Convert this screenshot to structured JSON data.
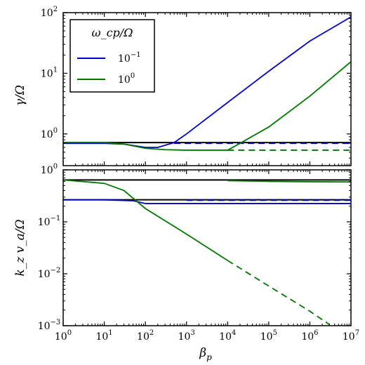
{
  "chart_data": [
    {
      "type": "line",
      "panel": "top",
      "xlabel": "",
      "ylabel_main": "γ/Ω",
      "xscale": "log",
      "yscale": "log",
      "xlim": [
        1,
        10000000
      ],
      "ylim": [
        0.3,
        100
      ],
      "xticks": [
        {
          "base": "10",
          "exp": "0",
          "value": 1
        },
        {
          "base": "10",
          "exp": "1",
          "value": 10
        },
        {
          "base": "10",
          "exp": "2",
          "value": 100
        },
        {
          "base": "10",
          "exp": "3",
          "value": 1000
        },
        {
          "base": "10",
          "exp": "4",
          "value": 10000
        },
        {
          "base": "10",
          "exp": "5",
          "value": 100000
        },
        {
          "base": "10",
          "exp": "6",
          "value": 1000000
        },
        {
          "base": "10",
          "exp": "7",
          "value": 10000000
        }
      ],
      "yticks": [
        {
          "base": "10",
          "exp": "0",
          "value": 1
        },
        {
          "base": "10",
          "exp": "1",
          "value": 10
        },
        {
          "base": "10",
          "exp": "2",
          "value": 100
        }
      ],
      "legend": {
        "placement": "top-left",
        "title": "ω_cp/Ω",
        "entries": [
          {
            "base": "10",
            "exp": "−1",
            "color": "#0000cc"
          },
          {
            "base": "10",
            "exp": "0",
            "color": "#007700"
          }
        ]
      },
      "series": [
        {
          "color": "#000000",
          "style": "solid",
          "x": [
            1,
            10000000
          ],
          "y": [
            0.72,
            0.72
          ]
        },
        {
          "color": "#0000cc",
          "style": "solid",
          "x": [
            1,
            10,
            30,
            100,
            200,
            500,
            1000,
            10000,
            100000,
            1000000,
            10000000
          ],
          "y": [
            0.7,
            0.7,
            0.68,
            0.6,
            0.6,
            0.72,
            1.0,
            3.3,
            10.8,
            34,
            85
          ]
        },
        {
          "color": "#0000cc",
          "style": "dashed",
          "x": [
            500,
            10000000
          ],
          "y": [
            0.7,
            0.7
          ]
        },
        {
          "color": "#007700",
          "style": "solid",
          "x": [
            1,
            10,
            30,
            100,
            300,
            1000,
            10000,
            20000,
            100000,
            1000000,
            10000000
          ],
          "y": [
            0.72,
            0.72,
            0.68,
            0.58,
            0.55,
            0.54,
            0.54,
            0.7,
            1.3,
            4.2,
            15.5
          ]
        },
        {
          "color": "#007700",
          "style": "dashed",
          "x": [
            10000,
            10000000
          ],
          "y": [
            0.54,
            0.54
          ]
        }
      ]
    },
    {
      "type": "line",
      "panel": "bottom",
      "xlabel_main": "β",
      "xlabel_sub": "p",
      "ylabel_main": "k_z v_a/Ω",
      "xscale": "log",
      "yscale": "log",
      "xlim": [
        1,
        10000000
      ],
      "ylim": [
        0.001,
        1
      ],
      "xticks": [
        {
          "base": "10",
          "exp": "0",
          "value": 1
        },
        {
          "base": "10",
          "exp": "1",
          "value": 10
        },
        {
          "base": "10",
          "exp": "2",
          "value": 100
        },
        {
          "base": "10",
          "exp": "3",
          "value": 1000
        },
        {
          "base": "10",
          "exp": "4",
          "value": 10000
        },
        {
          "base": "10",
          "exp": "5",
          "value": 100000
        },
        {
          "base": "10",
          "exp": "6",
          "value": 1000000
        },
        {
          "base": "10",
          "exp": "7",
          "value": 10000000
        }
      ],
      "yticks": [
        {
          "base": "10",
          "exp": "−3",
          "value": 0.001
        },
        {
          "base": "10",
          "exp": "−2",
          "value": 0.01
        },
        {
          "base": "10",
          "exp": "−1",
          "value": 0.1
        },
        {
          "base": "10",
          "exp": "0",
          "value": 1
        }
      ],
      "series": [
        {
          "color": "#000000",
          "style": "solid",
          "x": [
            1,
            10000000
          ],
          "y": [
            0.64,
            0.64
          ]
        },
        {
          "color": "#000000",
          "style": "solid",
          "x": [
            1,
            10000000
          ],
          "y": [
            0.265,
            0.265
          ]
        },
        {
          "color": "#0000cc",
          "style": "solid",
          "x": [
            1,
            10,
            50,
            100,
            200,
            1000,
            10000,
            10000000
          ],
          "y": [
            0.265,
            0.265,
            0.255,
            0.225,
            0.225,
            0.225,
            0.225,
            0.225
          ]
        },
        {
          "color": "#0000cc",
          "style": "dashed",
          "x": [
            1000,
            10000000
          ],
          "y": [
            0.26,
            0.26
          ]
        },
        {
          "color": "#007700",
          "style": "solid",
          "x": [
            1,
            10,
            30,
            100,
            1000,
            10000
          ],
          "y": [
            0.64,
            0.55,
            0.4,
            0.18,
            0.058,
            0.018
          ]
        },
        {
          "color": "#007700",
          "style": "dashed",
          "x": [
            10000,
            100000,
            1000000,
            3000000
          ],
          "y": [
            0.018,
            0.0058,
            0.0019,
            0.00105
          ]
        },
        {
          "color": "#007700",
          "style": "solid",
          "x": [
            10000,
            100000,
            1000000,
            10000000
          ],
          "y": [
            0.62,
            0.6,
            0.59,
            0.585
          ]
        }
      ]
    }
  ]
}
